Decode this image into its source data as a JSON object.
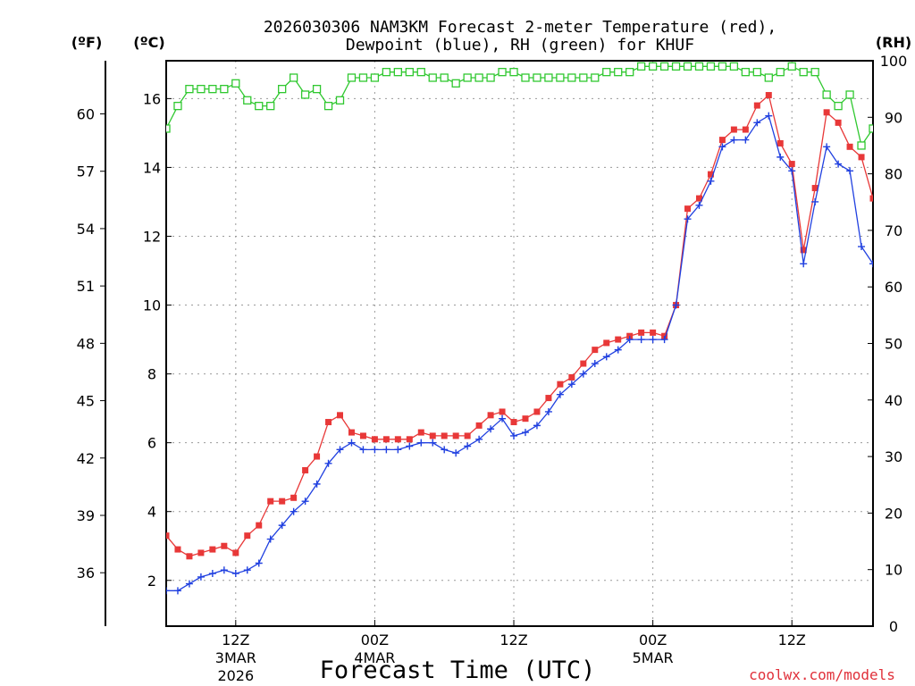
{
  "chart_data": {
    "type": "line",
    "title": {
      "line1": "2026030306 NAM3KM Forecast 2-meter Temperature (red),",
      "line2": "Dewpoint (blue), RH (green) for KHUF"
    },
    "xlabel": "Forecast Time (UTC)",
    "ylabel_left_f": "(ºF)",
    "ylabel_left_c": "(ºC)",
    "ylabel_right": "(RH)",
    "credit": "coolwx.com/models",
    "x_unit": "hours since 2026-03-03 06Z",
    "xlim": [
      0,
      61
    ],
    "ylim_c": [
      0.67,
      17.1
    ],
    "ylim_rh": [
      0,
      100
    ],
    "ylim_f_approx": [
      33.2,
      62.8
    ],
    "x_ticks": [
      {
        "x": 6,
        "line1": "12Z",
        "line2": "3MAR",
        "line3": "2026"
      },
      {
        "x": 18,
        "line1": "00Z",
        "line2": "4MAR",
        "line3": ""
      },
      {
        "x": 30,
        "line1": "12Z",
        "line2": "",
        "line3": ""
      },
      {
        "x": 42,
        "line1": "00Z",
        "line2": "5MAR",
        "line3": ""
      },
      {
        "x": 54,
        "line1": "12Z",
        "line2": "",
        "line3": ""
      }
    ],
    "y_ticks_c": [
      "2",
      "4",
      "6",
      "8",
      "10",
      "12",
      "14",
      "16"
    ],
    "y_ticks_f": [
      "36",
      "39",
      "42",
      "45",
      "48",
      "51",
      "54",
      "57",
      "60"
    ],
    "y_ticks_rh": [
      "0",
      "10",
      "20",
      "30",
      "40",
      "50",
      "60",
      "70",
      "80",
      "90",
      "100"
    ],
    "grid": true,
    "series": [
      {
        "name": "Temperature",
        "unit": "C",
        "color": "#e83838",
        "marker": "filled-square",
        "values": [
          3.3,
          2.9,
          2.7,
          2.8,
          2.9,
          3.0,
          2.8,
          3.3,
          3.6,
          4.3,
          4.3,
          4.4,
          5.2,
          5.6,
          6.6,
          6.8,
          6.3,
          6.2,
          6.1,
          6.1,
          6.1,
          6.1,
          6.3,
          6.2,
          6.2,
          6.2,
          6.2,
          6.5,
          6.8,
          6.9,
          6.6,
          6.7,
          6.9,
          7.3,
          7.7,
          7.9,
          8.3,
          8.7,
          8.9,
          9.0,
          9.1,
          9.2,
          9.2,
          9.1,
          10.0,
          12.8,
          13.1,
          13.8,
          14.8,
          15.1,
          15.1,
          15.8,
          16.1,
          14.7,
          14.1,
          11.6,
          13.4,
          15.6,
          15.3,
          14.6,
          14.3,
          13.1
        ]
      },
      {
        "name": "Dewpoint",
        "unit": "C",
        "color": "#2040e0",
        "marker": "plus",
        "values": [
          1.7,
          1.7,
          1.9,
          2.1,
          2.2,
          2.3,
          2.2,
          2.3,
          2.5,
          3.2,
          3.6,
          4.0,
          4.3,
          4.8,
          5.4,
          5.8,
          6.0,
          5.8,
          5.8,
          5.8,
          5.8,
          5.9,
          6.0,
          6.0,
          5.8,
          5.7,
          5.9,
          6.1,
          6.4,
          6.7,
          6.2,
          6.3,
          6.5,
          6.9,
          7.4,
          7.7,
          8.0,
          8.3,
          8.5,
          8.7,
          9.0,
          9.0,
          9.0,
          9.0,
          10.0,
          12.5,
          12.9,
          13.6,
          14.6,
          14.8,
          14.8,
          15.3,
          15.5,
          14.3,
          13.9,
          11.2,
          13.0,
          14.6,
          14.1,
          13.9,
          11.7,
          11.2
        ]
      },
      {
        "name": "RH",
        "unit": "%",
        "color": "#30c830",
        "marker": "open-square",
        "values": [
          88,
          92,
          95,
          95,
          95,
          95,
          96,
          93,
          92,
          92,
          95,
          97,
          94,
          95,
          92,
          93,
          97,
          97,
          97,
          98,
          98,
          98,
          98,
          97,
          97,
          96,
          97,
          97,
          97,
          98,
          98,
          97,
          97,
          97,
          97,
          97,
          97,
          97,
          98,
          98,
          98,
          99,
          99,
          99,
          99,
          99,
          99,
          99,
          99,
          99,
          98,
          98,
          97,
          98,
          99,
          98,
          98,
          94,
          92,
          94,
          85,
          88
        ]
      }
    ]
  }
}
